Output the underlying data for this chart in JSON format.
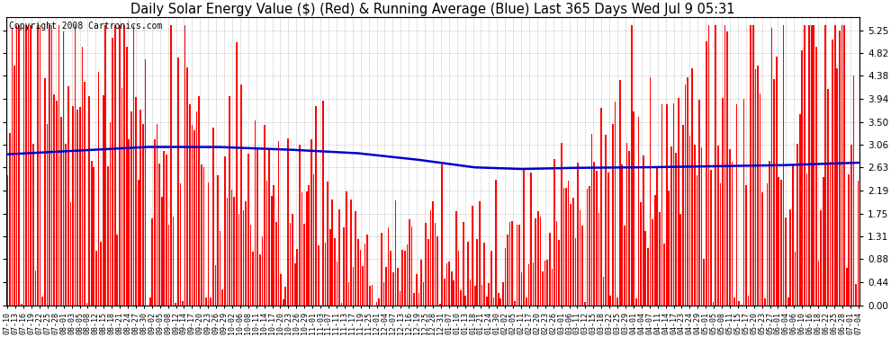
{
  "title": "Daily Solar Energy Value ($) (Red) & Running Average (Blue) Last 365 Days Wed Jul 9 05:31",
  "copyright": "Copyright 2008 Cartronics.com",
  "yticks": [
    0.0,
    0.44,
    0.88,
    1.31,
    1.75,
    2.19,
    2.63,
    3.06,
    3.5,
    3.94,
    4.38,
    4.82,
    5.25
  ],
  "ymax": 5.5,
  "ymin": 0.0,
  "bar_color": "#FF0000",
  "avg_color": "#0000CC",
  "background_color": "#FFFFFF",
  "grid_color": "#BBBBBB",
  "title_fontsize": 10.5,
  "copyright_fontsize": 7,
  "xtick_labels": [
    "07-10",
    "07-13",
    "07-16",
    "07-19",
    "07-22",
    "07-25",
    "07-28",
    "08-01",
    "08-03",
    "08-05",
    "08-08",
    "08-12",
    "08-15",
    "08-18",
    "08-21",
    "08-24",
    "08-27",
    "08-30",
    "09-02",
    "09-05",
    "09-08",
    "09-12",
    "09-14",
    "09-17",
    "09-20",
    "09-23",
    "09-26",
    "09-29",
    "10-02",
    "10-06",
    "10-08",
    "10-11",
    "10-14",
    "10-17",
    "10-20",
    "10-23",
    "10-26",
    "10-29",
    "11-01",
    "11-03",
    "11-07",
    "11-11",
    "11-13",
    "11-17",
    "11-19",
    "11-25",
    "12-01",
    "12-04",
    "12-07",
    "12-13",
    "12-16",
    "12-19",
    "12-25",
    "12-28",
    "12-31",
    "01-07",
    "01-10",
    "01-13",
    "01-18",
    "01-21",
    "01-24",
    "01-30",
    "02-02",
    "02-05",
    "02-11",
    "02-17",
    "02-20",
    "02-23",
    "02-26",
    "03-01",
    "03-06",
    "03-11",
    "03-12",
    "03-15",
    "03-18",
    "03-22",
    "03-25",
    "03-29",
    "04-01",
    "04-04",
    "04-07",
    "04-11",
    "04-14",
    "04-17",
    "04-23",
    "04-24",
    "04-29",
    "05-01",
    "05-05",
    "05-08",
    "05-11",
    "05-15",
    "05-17",
    "05-20",
    "05-23",
    "05-27",
    "06-01",
    "06-04",
    "06-06",
    "06-10",
    "06-16",
    "06-18",
    "06-22",
    "06-25",
    "06-28",
    "07-01",
    "07-04"
  ],
  "n_days": 365,
  "avg_control_points": [
    [
      0,
      2.88
    ],
    [
      30,
      2.95
    ],
    [
      60,
      3.02
    ],
    [
      90,
      3.02
    ],
    [
      120,
      2.97
    ],
    [
      150,
      2.9
    ],
    [
      175,
      2.78
    ],
    [
      200,
      2.63
    ],
    [
      220,
      2.6
    ],
    [
      240,
      2.62
    ],
    [
      270,
      2.63
    ],
    [
      300,
      2.65
    ],
    [
      330,
      2.67
    ],
    [
      364,
      2.72
    ]
  ]
}
